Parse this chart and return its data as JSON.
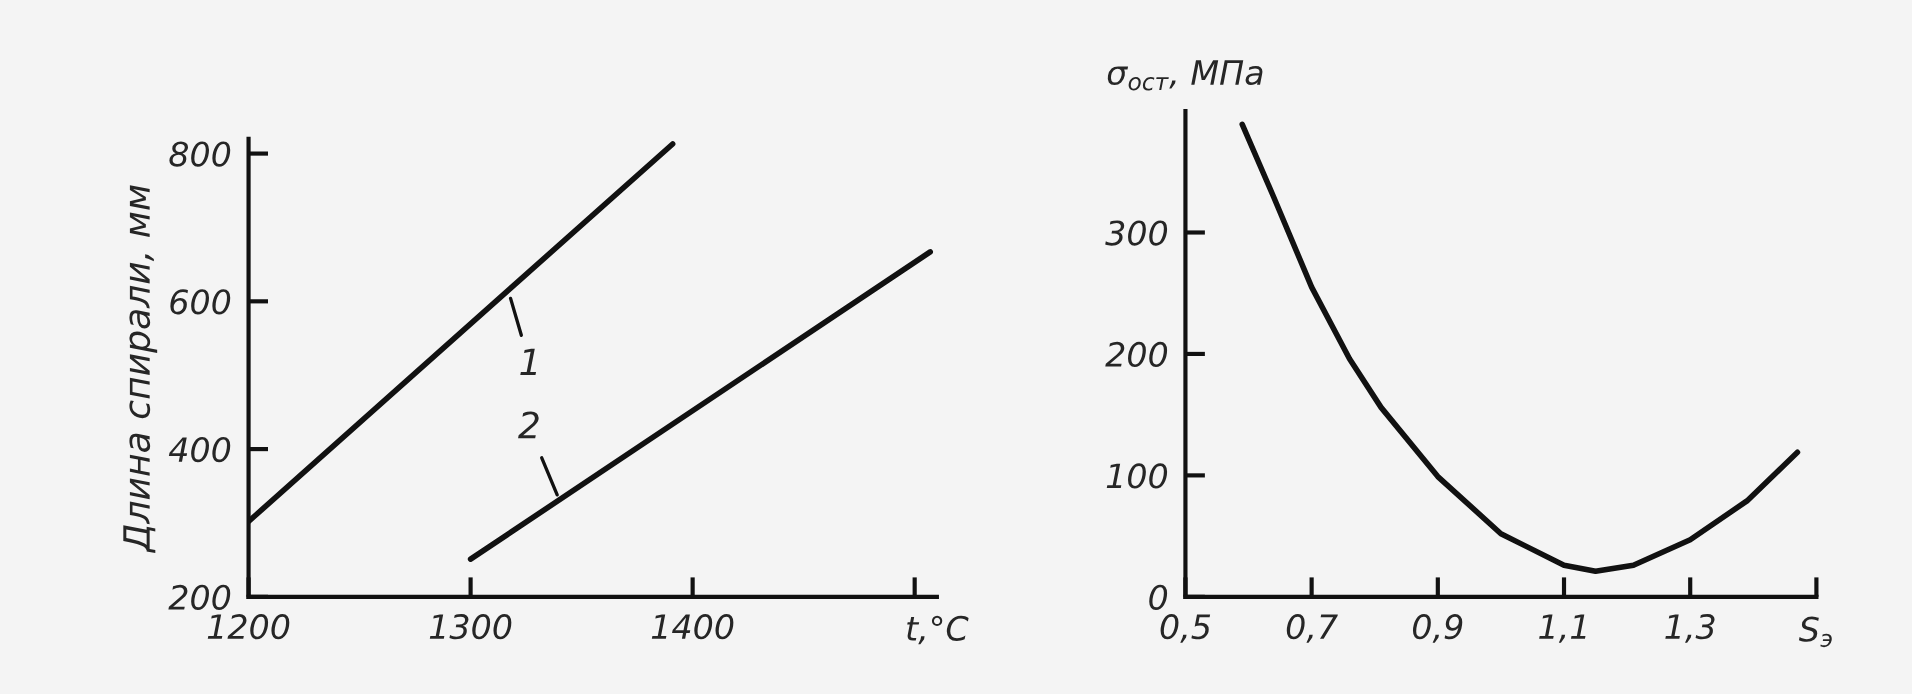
{
  "chart_data": [
    {
      "type": "line",
      "xlabel": "t,°C",
      "ylabel": "Длина спирали, мм",
      "xlim": [
        1200,
        1510
      ],
      "xticks": [
        1200,
        1300,
        1400,
        {
          "value": 1500,
          "label": null
        }
      ],
      "ylim": [
        200,
        820
      ],
      "yticks": [
        200,
        400,
        600,
        800
      ],
      "grid": false,
      "legend": false,
      "series": [
        {
          "color": "#111111",
          "x": [
            1200,
            1391
          ],
          "values": [
            302,
            813
          ]
        },
        {
          "color": "#111111",
          "x": [
            1300,
            1507
          ],
          "values": [
            251,
            667
          ]
        }
      ],
      "annotations": [
        {
          "text": "1",
          "x": 1318,
          "y": 604
        },
        {
          "text": "2",
          "x": 1339,
          "y": 338
        }
      ]
    },
    {
      "type": "line",
      "xlabel": "S$_{э}$",
      "ylabel": "σ$_{ост}$, МПа",
      "xlim": [
        0.5,
        1.5
      ],
      "xticks": [
        {
          "value": 0.5,
          "label": "0,5"
        },
        {
          "value": 0.7,
          "label": "0,7"
        },
        {
          "value": 0.9,
          "label": "0,9"
        },
        {
          "value": 1.1,
          "label": "1,1"
        },
        {
          "value": 1.3,
          "label": "1,3"
        },
        {
          "value": 1.5,
          "label": null
        }
      ],
      "ylim": [
        0,
        400
      ],
      "yticks": [
        0,
        100,
        200,
        300
      ],
      "grid": false,
      "legend": false,
      "series": [
        {
          "color": "#111111",
          "x": [
            0.59,
            0.64,
            0.7,
            0.76,
            0.81,
            0.9,
            1.0,
            1.1,
            1.15,
            1.21,
            1.3,
            1.39,
            1.47
          ],
          "values": [
            389,
            329,
            255,
            196,
            156,
            99,
            52,
            26,
            21,
            26,
            47,
            79,
            119
          ]
        }
      ]
    }
  ]
}
